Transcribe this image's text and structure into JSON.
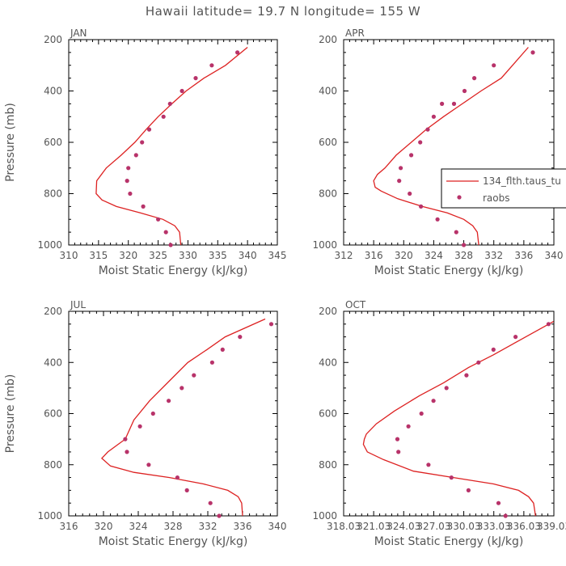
{
  "chart_data": {
    "title": "Hawaii  latitude= 19.7 N longitude= 155 W",
    "legend": {
      "placement": "right of APR panel",
      "entries": [
        {
          "label": "134_flth.taus_tu",
          "style": "line",
          "color": "#dd2222"
        },
        {
          "label": "raobs",
          "style": "dot",
          "color": "#b8336a"
        }
      ]
    },
    "panels": [
      {
        "type": "line",
        "label": "JAN",
        "xlabel": "Moist Static Energy (kJ/kg)",
        "ylabel": "Pressure (mb)",
        "xlim": [
          310,
          345
        ],
        "ylim": [
          1000,
          200
        ],
        "xticks": [
          "310",
          "315",
          "320",
          "325",
          "330",
          "335",
          "340",
          "345"
        ],
        "yticks": [
          "200",
          "400",
          "600",
          "800",
          "1000"
        ],
        "model": {
          "x": [
            328.8,
            328.6,
            327.8,
            325.8,
            322.0,
            318.0,
            315.6,
            314.6,
            314.7,
            316.3,
            318.8,
            321.1,
            323.0,
            325.0,
            327.3,
            329.7,
            332.7,
            336.3,
            340.0
          ],
          "y": [
            1000,
            950,
            925,
            900,
            875,
            850,
            825,
            800,
            750,
            700,
            650,
            600,
            550,
            500,
            450,
            400,
            350,
            300,
            230
          ]
        },
        "obs": {
          "x": [
            327.1,
            326.3,
            325.0,
            322.5,
            320.3,
            319.8,
            320.0,
            321.3,
            322.3,
            323.5,
            325.9,
            327.0,
            329.0,
            331.3,
            334.0,
            338.3
          ],
          "y": [
            1000,
            950,
            900,
            850,
            800,
            750,
            700,
            650,
            600,
            550,
            500,
            450,
            400,
            350,
            300,
            250
          ]
        }
      },
      {
        "type": "line",
        "label": "APR",
        "xlabel": "Moist Static Energy (kJ/kg)",
        "ylabel": "",
        "xlim": [
          312,
          340
        ],
        "ylim": [
          1000,
          200
        ],
        "xticks": [
          "312",
          "316",
          "320",
          "324",
          "328",
          "332",
          "336",
          "340"
        ],
        "yticks": [
          "200",
          "400",
          "600",
          "800",
          "1000"
        ],
        "model": {
          "x": [
            330.0,
            329.8,
            329.2,
            328.0,
            325.8,
            322.5,
            319.2,
            317.0,
            316.2,
            316.0,
            316.5,
            317.5,
            319.0,
            321.0,
            323.0,
            325.3,
            327.8,
            330.3,
            333.0,
            336.6
          ],
          "y": [
            1000,
            950,
            925,
            900,
            875,
            850,
            820,
            790,
            775,
            750,
            725,
            700,
            650,
            600,
            550,
            500,
            450,
            400,
            350,
            230
          ]
        },
        "obs": {
          "x": [
            328.0,
            327.0,
            324.5,
            322.3,
            320.8,
            319.4,
            319.6,
            321.0,
            322.2,
            323.2,
            324.0,
            325.1,
            326.7,
            328.1,
            329.4,
            332.0,
            337.2
          ],
          "y": [
            1000,
            950,
            900,
            850,
            800,
            750,
            700,
            650,
            600,
            550,
            500,
            450,
            450,
            400,
            350,
            300,
            250
          ]
        }
      },
      {
        "type": "line",
        "label": "JUL",
        "xlabel": "Moist Static Energy (kJ/kg)",
        "ylabel": "Pressure (mb)",
        "xlim": [
          316,
          340
        ],
        "ylim": [
          1000,
          200
        ],
        "xticks": [
          "316",
          "320",
          "324",
          "328",
          "332",
          "336",
          "340"
        ],
        "yticks": [
          "200",
          "400",
          "600",
          "800",
          "1000"
        ],
        "model": {
          "x": [
            336.0,
            335.9,
            335.5,
            334.3,
            331.5,
            327.6,
            323.5,
            320.8,
            319.8,
            320.5,
            321.5,
            322.5,
            323.5,
            325.3,
            327.5,
            329.7,
            331.9,
            334.0,
            338.6
          ],
          "y": [
            1000,
            950,
            925,
            900,
            875,
            850,
            830,
            805,
            775,
            750,
            725,
            700,
            625,
            550,
            475,
            400,
            350,
            300,
            230
          ]
        },
        "obs": {
          "x": [
            333.3,
            332.3,
            329.6,
            328.5,
            325.2,
            322.7,
            322.5,
            324.2,
            325.7,
            327.5,
            329.0,
            330.4,
            332.5,
            333.7,
            335.7,
            339.3
          ],
          "y": [
            1000,
            950,
            900,
            850,
            800,
            750,
            700,
            650,
            600,
            550,
            500,
            450,
            400,
            350,
            300,
            250
          ]
        }
      },
      {
        "type": "line",
        "label": "OCT",
        "xlabel": "Moist Static Energy (kJ/kg)",
        "ylabel": "",
        "xlim": [
          318.03,
          339.03
        ],
        "ylim": [
          1000,
          200
        ],
        "xticks": [
          "318.03",
          "321.03",
          "324.03",
          "327.03",
          "330.03",
          "333.03",
          "336.03",
          "339.03"
        ],
        "yticks": [
          "200",
          "400",
          "600",
          "800",
          "1000"
        ],
        "model": {
          "x": [
            337.2,
            337.0,
            336.5,
            335.5,
            333.0,
            329.0,
            325.0,
            322.0,
            320.4,
            320.0,
            320.1,
            320.3,
            321.3,
            323.1,
            325.6,
            328.0,
            330.5,
            333.0,
            335.3,
            339.0
          ],
          "y": [
            1000,
            950,
            925,
            900,
            875,
            850,
            825,
            780,
            750,
            720,
            700,
            680,
            640,
            590,
            530,
            480,
            420,
            370,
            320,
            240
          ]
        },
        "obs": {
          "x": [
            334.2,
            333.5,
            330.5,
            328.8,
            326.5,
            323.5,
            323.4,
            324.5,
            325.8,
            327.0,
            328.3,
            330.3,
            331.5,
            333.0,
            335.2,
            338.5
          ],
          "y": [
            1000,
            950,
            900,
            850,
            800,
            750,
            700,
            650,
            600,
            550,
            500,
            450,
            400,
            350,
            300,
            250
          ]
        }
      }
    ]
  }
}
